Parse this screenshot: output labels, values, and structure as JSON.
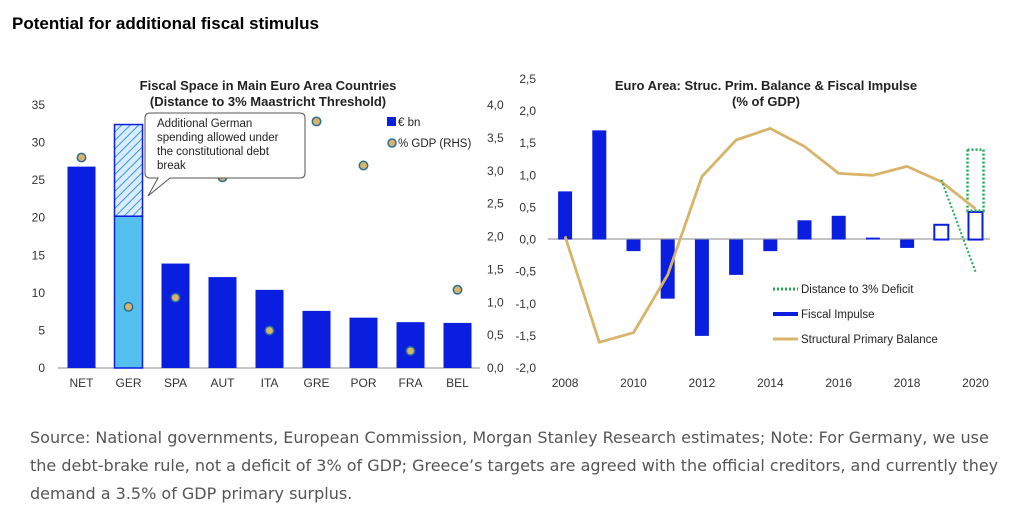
{
  "page_title": "Potential for additional fiscal stimulus",
  "source_note": "Source: National governments, European Commission, Morgan Stanley Research estimates; Note: For Germany, we use the debt-brake rule, not a deficit of 3% of GDP; Greece’s targets are agreed with the official creditors, and currently they demand a 3.5% of GDP primary surplus.",
  "chart_data": [
    {
      "type": "bar",
      "title_line1": "Fiscal Space in Main Euro Area Countries",
      "title_line2": "(Distance to 3% Maastricht Threshold)",
      "categories": [
        "NET",
        "GER",
        "SPA",
        "AUT",
        "ITA",
        "GRE",
        "POR",
        "FRA",
        "BEL"
      ],
      "ylim": [
        0,
        35
      ],
      "y2lim": [
        0,
        4
      ],
      "yticks": [
        "0",
        "5",
        "10",
        "15",
        "20",
        "25",
        "30",
        "35"
      ],
      "y2ticks": [
        "0,0",
        "0,5",
        "1,0",
        "1,5",
        "2,0",
        "2,5",
        "3,0",
        "3,5",
        "4,0"
      ],
      "series": [
        {
          "name": "€ bn",
          "type": "bar",
          "axis": "left",
          "color": "#0a1ee0",
          "values": [
            26.8,
            20.2,
            13.9,
            12.1,
            10.4,
            7.6,
            6.7,
            6.1,
            6.0
          ]
        },
        {
          "name": "% GDP (RHS)",
          "type": "scatter",
          "axis": "right",
          "color": "#d8b46a",
          "values": [
            3.2,
            0.93,
            1.07,
            2.9,
            0.57,
            3.75,
            3.08,
            0.26,
            1.19
          ]
        }
      ],
      "extra_segment": {
        "category": "GER",
        "from": 20.2,
        "to": 32.4
      },
      "callout": "Additional German spending allowed under the constitutional debt break"
    },
    {
      "type": "bar",
      "title_line1": "Euro Area: Struc. Prim. Balance & Fiscal Impulse",
      "title_line2": "(% of GDP)",
      "x": [
        2008,
        2009,
        2010,
        2011,
        2012,
        2013,
        2014,
        2015,
        2016,
        2017,
        2018,
        2019,
        2020
      ],
      "ylim": [
        -2.0,
        2.5
      ],
      "yticks": [
        "-2,0",
        "-1,5",
        "-1,0",
        "-0,5",
        "0,0",
        "0,5",
        "1,0",
        "1,5",
        "2,0",
        "2,5"
      ],
      "xticks": [
        "2008",
        "2010",
        "2012",
        "2014",
        "2016",
        "2018",
        "2020"
      ],
      "series": [
        {
          "name": "Fiscal Impulse",
          "type": "bar",
          "color": "#0a1ee0",
          "values": [
            0.75,
            1.7,
            -0.18,
            -0.92,
            -1.5,
            -0.55,
            -0.18,
            0.3,
            0.37,
            0.03,
            -0.13,
            0.23,
            0.43
          ],
          "hollow_from_index": 11
        },
        {
          "name": "Structural Primary Balance",
          "type": "line",
          "color": "#d8b46a",
          "values": [
            0.05,
            -1.6,
            -1.45,
            -0.55,
            0.98,
            1.55,
            1.73,
            1.45,
            1.03,
            1.0,
            1.14,
            0.9,
            0.48
          ]
        },
        {
          "name": "Distance to 3% Deficit",
          "type": "line-dotted",
          "color": "#22aa55",
          "x": [
            2019,
            2020
          ],
          "values": [
            0.93,
            -0.5
          ],
          "box": [
            0.45,
            1.4
          ]
        }
      ]
    }
  ]
}
